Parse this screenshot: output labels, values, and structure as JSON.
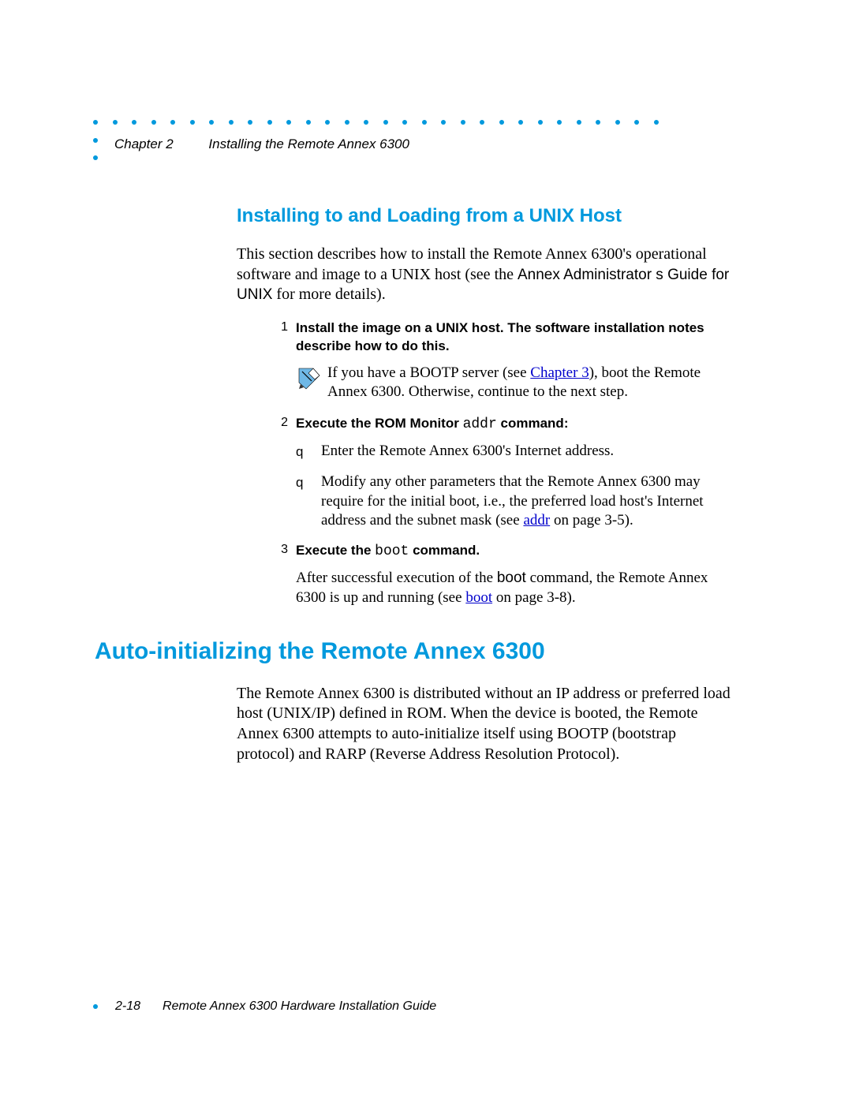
{
  "colors": {
    "accent": "#0099dd",
    "link": "#0000cc",
    "text": "#000000",
    "background": "#ffffff"
  },
  "decor": {
    "top_dot_count": 30,
    "side_dot_count": 2
  },
  "header": {
    "chapter": "Chapter 2",
    "title": "Installing the Remote Annex 6300"
  },
  "section_heading": "Installing to and Loading from a UNIX Host",
  "intro": {
    "part1": "This section describes how to install the Remote Annex 6300's operational software and image to a UNIX host (see the ",
    "sans1": "Annex Administrator s Guide for UNIX",
    "part2": " for more details)."
  },
  "steps": [
    {
      "num": "1",
      "head": "Install the image on a UNIX host. The software installation notes describe how to do this."
    },
    {
      "num": "2",
      "head_pre": "Execute the ROM Monitor ",
      "head_mono": "addr",
      "head_post": " command:"
    },
    {
      "num": "3",
      "head_pre": "Execute the ",
      "head_mono": "boot",
      "head_post": " command."
    }
  ],
  "note": {
    "pre": "If you have a BOOTP server (see ",
    "link": "Chapter 3",
    "post": "), boot the Remote Annex 6300. Otherwise, continue to the next step."
  },
  "sub_items": [
    {
      "bullet": "q",
      "text": "Enter the Remote Annex 6300's Internet address."
    },
    {
      "bullet": "q",
      "pre": "Modify any other parameters that the Remote Annex 6300 may require for the initial boot, i.e., the preferred load host's Internet address and the subnet mask (see ",
      "link": "addr",
      "post": " on page 3-5)."
    }
  ],
  "after_step3": {
    "pre": "After successful execution of the ",
    "sans": "boot",
    "mid": " command, the Remote Annex 6300 is up and running (see ",
    "link": "boot",
    "post": " on page 3-8)."
  },
  "main_heading": "Auto-initializing the Remote Annex 6300",
  "main_para": "The Remote Annex 6300 is distributed without an IP address or preferred load host (UNIX/IP) defined in ROM. When the device is booted, the Remote Annex 6300 attempts to auto-initialize itself using BOOTP (bootstrap protocol) and RARP (Reverse Address Resolution Protocol).",
  "footer": {
    "pagenum": "2-18",
    "title": "Remote Annex 6300 Hardware Installation Guide"
  }
}
